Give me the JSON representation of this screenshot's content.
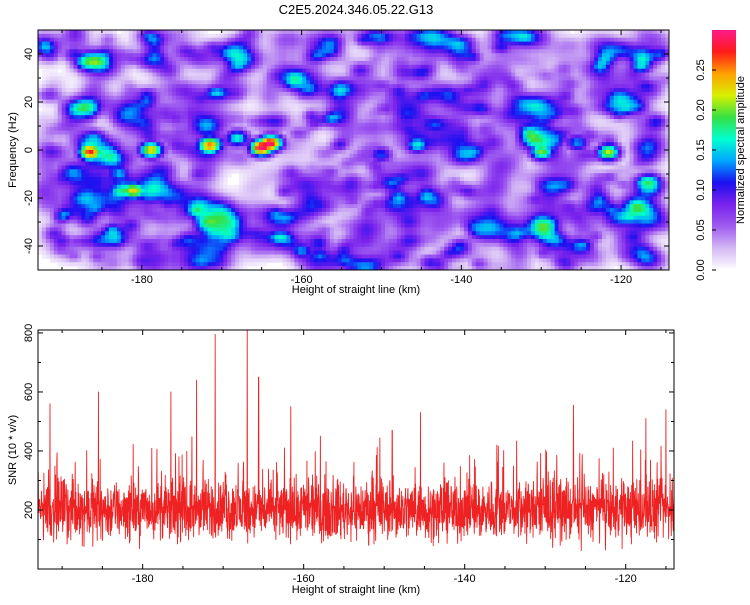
{
  "title": "C2E5.2024.346.05.22.G13",
  "colors": {
    "snr_line": "#ee2222",
    "background": "#ffffff",
    "axis": "#000000"
  },
  "colorbar": {
    "label": "Normalized spectral amplitude",
    "ticks": [
      "0.00",
      "0.05",
      "0.10",
      "0.15",
      "0.20",
      "0.25"
    ],
    "tick_values": [
      0.0,
      0.05,
      0.1,
      0.15,
      0.2,
      0.25
    ],
    "range": [
      0.0,
      0.3
    ],
    "colormap": [
      "#ffffff",
      "#d4b8f4",
      "#9f5cf0",
      "#7a22ec",
      "#1b10f0",
      "#00a6ff",
      "#00ffd0",
      "#35e044",
      "#d8f000",
      "#ffa000",
      "#ff1a1a",
      "#ff1a8a"
    ]
  },
  "chart_data": [
    {
      "type": "heatmap",
      "title": "C2E5.2024.346.05.22.G13",
      "xlabel": "Height of straight line (km)",
      "ylabel": "Frequency (Hz)",
      "xlim": [
        -193,
        -114
      ],
      "ylim": [
        -50,
        50
      ],
      "x_ticks": [
        -180,
        -160,
        -140,
        -120
      ],
      "x_tick_labels": [
        "-180",
        "-160",
        "-140",
        "-120"
      ],
      "y_ticks": [
        -40,
        -20,
        0,
        20,
        40
      ],
      "y_tick_labels": [
        "-40",
        "-20",
        "0",
        "20",
        "40"
      ],
      "colorbar_label": "Normalized spectral amplitude",
      "background_level": 0.04,
      "hotspots": [
        {
          "x": -165.0,
          "y": 1,
          "amplitude": 0.29
        },
        {
          "x": -163.8,
          "y": 3,
          "amplitude": 0.24
        },
        {
          "x": -171.5,
          "y": 2,
          "amplitude": 0.22
        },
        {
          "x": -168.0,
          "y": 5,
          "amplitude": 0.16
        },
        {
          "x": -178.8,
          "y": 0,
          "amplitude": 0.22
        },
        {
          "x": -186.5,
          "y": -1,
          "amplitude": 0.2
        },
        {
          "x": -181.0,
          "y": -17,
          "amplitude": 0.18
        },
        {
          "x": -130.0,
          "y": -1,
          "amplitude": 0.16
        },
        {
          "x": -121.5,
          "y": -1,
          "amplitude": 0.2
        },
        {
          "x": -125.5,
          "y": 3,
          "amplitude": 0.12
        },
        {
          "x": -150.0,
          "y": -2,
          "amplitude": 0.1
        },
        {
          "x": -145.5,
          "y": 2,
          "amplitude": 0.12
        },
        {
          "x": -188.5,
          "y": 40,
          "amplitude": 0.08
        },
        {
          "x": -135.0,
          "y": 43,
          "amplitude": 0.08
        },
        {
          "x": -117.5,
          "y": 35,
          "amplitude": 0.11
        },
        {
          "x": -160.0,
          "y": -42,
          "amplitude": 0.1
        },
        {
          "x": -190.0,
          "y": -38,
          "amplitude": 0.07
        },
        {
          "x": -144.0,
          "y": -47,
          "amplitude": 0.07
        }
      ]
    },
    {
      "type": "line",
      "xlabel": "Height of straight line (km)",
      "ylabel": "SNR (10 * v/v)",
      "xlim": [
        -193,
        -114
      ],
      "ylim": [
        0,
        810
      ],
      "x_ticks": [
        -180,
        -160,
        -140,
        -120
      ],
      "x_tick_labels": [
        "-180",
        "-160",
        "-140",
        "-120"
      ],
      "y_ticks": [
        200,
        400,
        600,
        800
      ],
      "y_tick_labels": [
        "200",
        "400",
        "600",
        "800"
      ],
      "baseline_mean": 200,
      "baseline_spread": 75,
      "peaks": [
        {
          "x": -167.0,
          "y": 810
        },
        {
          "x": -171.0,
          "y": 795
        },
        {
          "x": -165.6,
          "y": 650
        },
        {
          "x": -173.3,
          "y": 640
        },
        {
          "x": -185.5,
          "y": 600
        },
        {
          "x": -161.6,
          "y": 550
        },
        {
          "x": -191.5,
          "y": 560
        },
        {
          "x": -176.5,
          "y": 600
        },
        {
          "x": -149.0,
          "y": 470
        },
        {
          "x": -145.5,
          "y": 530
        },
        {
          "x": -126.5,
          "y": 555
        },
        {
          "x": -117.5,
          "y": 510
        },
        {
          "x": -115.0,
          "y": 540
        },
        {
          "x": -136.0,
          "y": 420
        }
      ]
    }
  ]
}
